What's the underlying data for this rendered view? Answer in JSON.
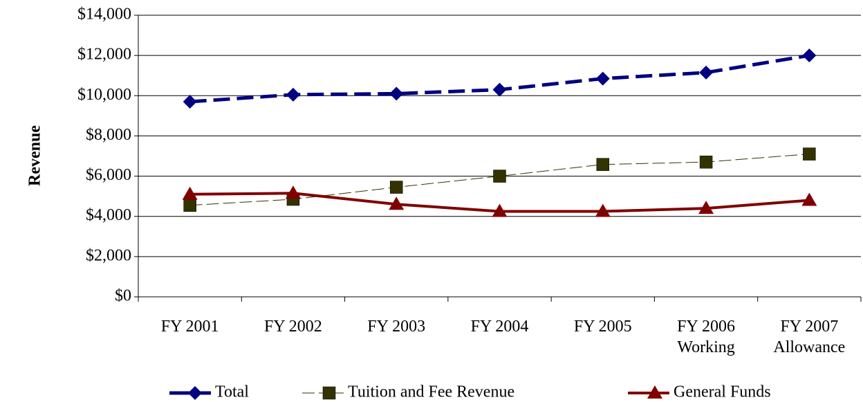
{
  "chart_data": {
    "type": "line",
    "y_label": "Revenue",
    "categories": [
      "FY 2001",
      "FY 2002",
      "FY 2003",
      "FY 2004",
      "FY 2005",
      "FY 2006\nWorking",
      "FY 2007\nAllowance"
    ],
    "series": [
      {
        "name": "Total",
        "color": "#000080",
        "values": [
          9700,
          10050,
          10100,
          10300,
          10850,
          11150,
          12000
        ]
      },
      {
        "name": "Tuition and Fee Revenue",
        "color": "#333300",
        "values": [
          4550,
          4850,
          5450,
          6000,
          6580,
          6700,
          7100
        ]
      },
      {
        "name": "General Funds",
        "color": "#800000",
        "values": [
          5100,
          5150,
          4600,
          4250,
          4250,
          4400,
          4800
        ]
      }
    ],
    "ylim": [
      0,
      14000
    ],
    "yticks": [
      {
        "value": 0,
        "label": "$0"
      },
      {
        "value": 2000,
        "label": "$2,000"
      },
      {
        "value": 4000,
        "label": "$4,000"
      },
      {
        "value": 6000,
        "label": "$6,000"
      },
      {
        "value": 8000,
        "label": "$8,000"
      },
      {
        "value": 10000,
        "label": "$10,000"
      },
      {
        "value": 12000,
        "label": "$12,000"
      },
      {
        "value": 14000,
        "label": "$14,000"
      }
    ],
    "grid": true,
    "legend": "bottom"
  }
}
